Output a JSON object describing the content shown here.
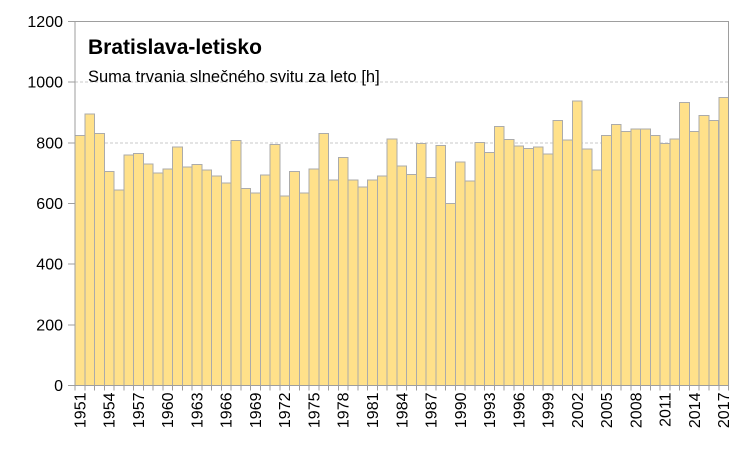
{
  "chart": {
    "title": "Bratislava-letisko",
    "subtitle": "Suma trvania slnečného svitu za leto [h]"
  },
  "chart_data": {
    "type": "bar",
    "title": "Bratislava-letisko",
    "subtitle": "Suma trvania slnečného svitu za leto [h]",
    "categories": [
      1951,
      1952,
      1953,
      1954,
      1955,
      1956,
      1957,
      1958,
      1959,
      1960,
      1961,
      1962,
      1963,
      1964,
      1965,
      1966,
      1967,
      1968,
      1969,
      1970,
      1971,
      1972,
      1973,
      1974,
      1975,
      1976,
      1977,
      1978,
      1979,
      1980,
      1981,
      1982,
      1983,
      1984,
      1985,
      1986,
      1987,
      1988,
      1989,
      1990,
      1991,
      1992,
      1993,
      1994,
      1995,
      1996,
      1997,
      1998,
      1999,
      2000,
      2001,
      2002,
      2003,
      2004,
      2005,
      2006,
      2007,
      2008,
      2009,
      2010,
      2011,
      2012,
      2013,
      2014,
      2015,
      2016,
      2017
    ],
    "values": [
      825,
      895,
      830,
      705,
      645,
      760,
      765,
      730,
      700,
      713,
      787,
      720,
      728,
      710,
      690,
      668,
      808,
      650,
      634,
      694,
      795,
      624,
      706,
      634,
      714,
      830,
      678,
      751,
      678,
      655,
      678,
      690,
      812,
      724,
      696,
      798,
      685,
      791,
      600,
      737,
      674,
      801,
      768,
      854,
      811,
      789,
      781,
      786,
      764,
      874,
      810,
      938,
      779,
      710,
      824,
      860,
      838,
      846,
      845,
      824,
      798,
      813,
      933,
      838,
      890,
      873,
      950
    ],
    "xlabel": "",
    "ylabel": "",
    "ylim": [
      0,
      1200
    ],
    "yticks": [
      0,
      200,
      400,
      600,
      800,
      1000,
      1200
    ],
    "xtick_label_years": [
      1951,
      1954,
      1957,
      1960,
      1963,
      1966,
      1969,
      1972,
      1975,
      1978,
      1981,
      1984,
      1987,
      1990,
      1993,
      1996,
      1999,
      2002,
      2005,
      2008,
      2011,
      2014,
      2017
    ],
    "grid": "horizontal-dashed",
    "legend": "none",
    "bar_gap": 0,
    "colors": {
      "bar_fill": "#FFE18A",
      "bar_border": "#ABABAB",
      "gridline": "#C9C9C9",
      "axis": "#9E9E9E",
      "text": "#000000",
      "background": "#FFFFFF"
    }
  }
}
